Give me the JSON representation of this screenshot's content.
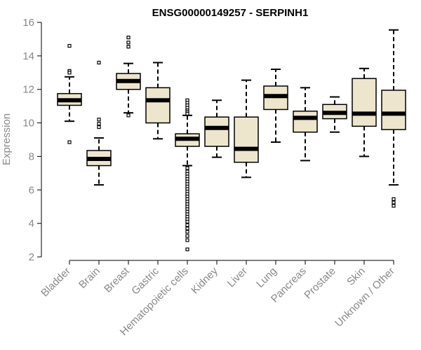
{
  "chart_data": {
    "type": "boxplot",
    "title": "ENSG00000149257 - SERPINH1",
    "xlabel": "",
    "ylabel": "Expression",
    "ylim": [
      2,
      16
    ],
    "yticks": [
      2,
      4,
      6,
      8,
      10,
      12,
      14,
      16
    ],
    "colors": {
      "box_fill": "#ede6cd",
      "box_stroke": "#000000",
      "axis": "#000000",
      "label": "#888888"
    },
    "categories": [
      "Bladder",
      "Brain",
      "Breast",
      "Gastric",
      "Hematopoietic cells",
      "Kidney",
      "Liver",
      "Lung",
      "Pancreas",
      "Prostate",
      "Skin",
      "Unknown / Other"
    ],
    "series": [
      {
        "name": "Bladder",
        "min": 10.1,
        "q1": 11.05,
        "median": 11.35,
        "q3": 11.75,
        "max": 12.75,
        "outliers": [
          14.6,
          13.1,
          13.0,
          8.85
        ]
      },
      {
        "name": "Brain",
        "min": 6.3,
        "q1": 7.45,
        "median": 7.85,
        "q3": 8.35,
        "max": 9.1,
        "outliers": [
          13.6,
          10.2,
          9.95,
          9.75
        ]
      },
      {
        "name": "Breast",
        "min": 10.6,
        "q1": 12.0,
        "median": 12.5,
        "q3": 12.95,
        "max": 13.55,
        "outliers": [
          15.1,
          14.8,
          14.55,
          10.45
        ]
      },
      {
        "name": "Gastric",
        "min": 9.05,
        "q1": 10.0,
        "median": 11.35,
        "q3": 12.1,
        "max": 13.6,
        "outliers": []
      },
      {
        "name": "Hematopoietic cells",
        "min": 7.45,
        "q1": 8.6,
        "median": 9.05,
        "q3": 9.35,
        "max": 10.45,
        "outliers": [
          11.35,
          11.2,
          11.05,
          10.9,
          10.75,
          10.65,
          10.55,
          7.3,
          7.1,
          6.95,
          6.8,
          6.65,
          6.5,
          6.35,
          6.2,
          6.05,
          5.9,
          5.75,
          5.6,
          5.45,
          5.3,
          5.15,
          5.0,
          4.85,
          4.7,
          4.55,
          4.4,
          4.25,
          4.1,
          3.9,
          3.7,
          3.5,
          3.25,
          3.0,
          2.45
        ]
      },
      {
        "name": "Kidney",
        "min": 7.95,
        "q1": 8.6,
        "median": 9.7,
        "q3": 10.35,
        "max": 11.35,
        "outliers": []
      },
      {
        "name": "Liver",
        "min": 6.75,
        "q1": 7.65,
        "median": 8.45,
        "q3": 10.35,
        "max": 12.55,
        "outliers": []
      },
      {
        "name": "Lung",
        "min": 8.85,
        "q1": 10.8,
        "median": 11.6,
        "q3": 12.2,
        "max": 13.2,
        "outliers": []
      },
      {
        "name": "Pancreas",
        "min": 7.75,
        "q1": 9.45,
        "median": 10.3,
        "q3": 10.7,
        "max": 12.1,
        "outliers": []
      },
      {
        "name": "Prostate",
        "min": 9.45,
        "q1": 10.25,
        "median": 10.6,
        "q3": 11.1,
        "max": 11.55,
        "outliers": []
      },
      {
        "name": "Skin",
        "min": 8.0,
        "q1": 9.8,
        "median": 10.55,
        "q3": 12.65,
        "max": 13.25,
        "outliers": []
      },
      {
        "name": "Unknown / Other",
        "min": 6.3,
        "q1": 9.6,
        "median": 10.55,
        "q3": 11.95,
        "max": 15.55,
        "outliers": [
          5.45,
          5.25,
          5.05
        ]
      }
    ]
  }
}
